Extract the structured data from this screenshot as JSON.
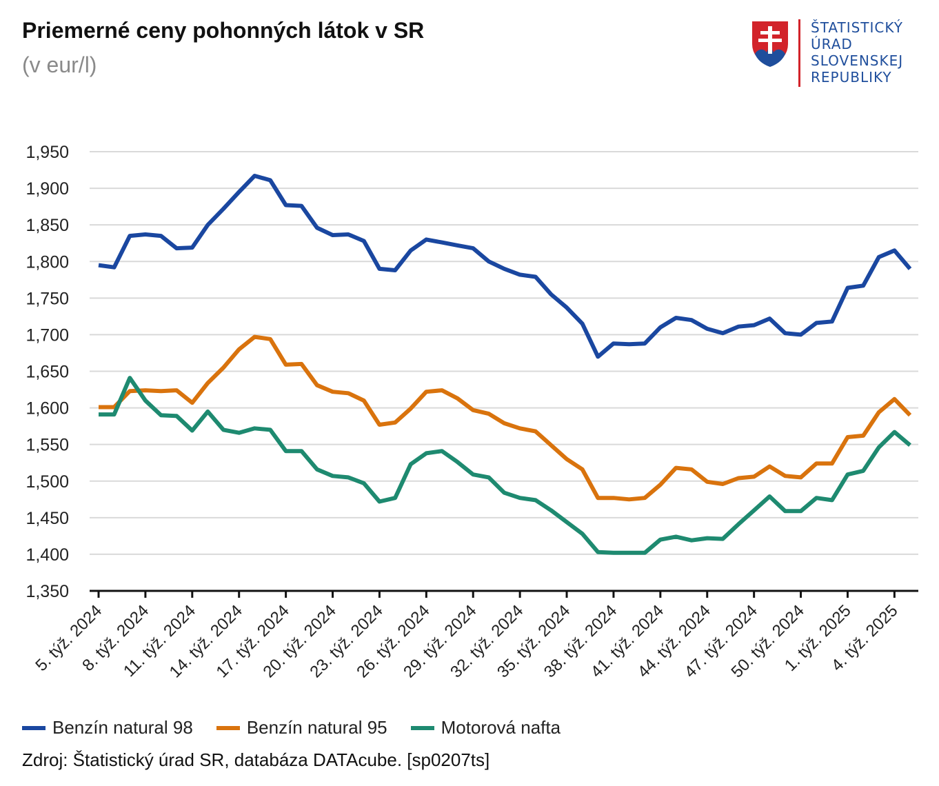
{
  "header": {
    "title": "Priemerné ceny pohonných látok v SR",
    "subtitle": "(v eur/l)"
  },
  "logo": {
    "lines": [
      "ŠTATISTICKÝ",
      "ÚRAD",
      "SLOVENSKEJ",
      "REPUBLIKY"
    ],
    "colors": {
      "text": "#1f4e9c",
      "shield": "#d2232a",
      "hills": "#1f4e9c",
      "rule": "#d2232a"
    }
  },
  "chart_data": {
    "type": "line",
    "title": "Priemerné ceny pohonných látok v SR",
    "subtitle": "(v eur/l)",
    "xlabel": "",
    "ylabel": "",
    "ylim": [
      1.35,
      1.95
    ],
    "yticks": [
      "1,350",
      "1,400",
      "1,450",
      "1,500",
      "1,550",
      "1,600",
      "1,650",
      "1,700",
      "1,750",
      "1,800",
      "1,850",
      "1,900",
      "1,950"
    ],
    "ytick_values": [
      1.35,
      1.4,
      1.45,
      1.5,
      1.55,
      1.6,
      1.65,
      1.7,
      1.75,
      1.8,
      1.85,
      1.9,
      1.95
    ],
    "grid": true,
    "legend_position": "bottom-left",
    "x_tick_labels": [
      "5. týž. 2024",
      "8. týž. 2024",
      "11. týž. 2024",
      "14. týž. 2024",
      "17. týž. 2024",
      "20. týž. 2024",
      "23. týž. 2024",
      "26. týž. 2024",
      "29. týž. 2024",
      "32. týž. 2024",
      "35. týž. 2024",
      "38. týž. 2024",
      "41. týž. 2024",
      "44. týž. 2024",
      "47. týž. 2024",
      "50. týž. 2024",
      "1. týž. 2025",
      "4. týž. 2025"
    ],
    "x_tick_indices": [
      0,
      3,
      6,
      9,
      12,
      15,
      18,
      21,
      24,
      27,
      30,
      33,
      36,
      39,
      42,
      45,
      48,
      51
    ],
    "point_count": 53,
    "series": [
      {
        "name": "Benzín natural 98",
        "color": "#1a47a0",
        "values": [
          1.795,
          1.792,
          1.835,
          1.837,
          1.835,
          1.818,
          1.819,
          1.85,
          1.872,
          1.895,
          1.917,
          1.911,
          1.877,
          1.876,
          1.846,
          1.836,
          1.837,
          1.828,
          1.79,
          1.788,
          1.815,
          1.83,
          1.826,
          1.822,
          1.818,
          1.8,
          1.79,
          1.782,
          1.779,
          1.755,
          1.737,
          1.715,
          1.67,
          1.688,
          1.687,
          1.688,
          1.71,
          1.723,
          1.72,
          1.708,
          1.702,
          1.711,
          1.713,
          1.722,
          1.702,
          1.7,
          1.716,
          1.718,
          1.764,
          1.767,
          1.806,
          1.815,
          1.79
        ]
      },
      {
        "name": "Benzín natural 95",
        "color": "#d9730d",
        "values": [
          1.601,
          1.601,
          1.623,
          1.624,
          1.623,
          1.624,
          1.607,
          1.634,
          1.655,
          1.68,
          1.697,
          1.694,
          1.659,
          1.66,
          1.631,
          1.622,
          1.62,
          1.61,
          1.577,
          1.58,
          1.599,
          1.622,
          1.624,
          1.613,
          1.597,
          1.592,
          1.579,
          1.572,
          1.568,
          1.549,
          1.53,
          1.516,
          1.477,
          1.477,
          1.475,
          1.477,
          1.495,
          1.518,
          1.516,
          1.499,
          1.496,
          1.504,
          1.506,
          1.52,
          1.507,
          1.505,
          1.524,
          1.524,
          1.56,
          1.562,
          1.594,
          1.612,
          1.59
        ]
      },
      {
        "name": "Motorová nafta",
        "color": "#1e8a70",
        "values": [
          1.591,
          1.591,
          1.641,
          1.61,
          1.59,
          1.589,
          1.569,
          1.595,
          1.57,
          1.566,
          1.572,
          1.57,
          1.541,
          1.541,
          1.516,
          1.507,
          1.505,
          1.497,
          1.472,
          1.477,
          1.523,
          1.538,
          1.541,
          1.526,
          1.509,
          1.505,
          1.484,
          1.477,
          1.474,
          1.46,
          1.444,
          1.428,
          1.403,
          1.402,
          1.402,
          1.402,
          1.42,
          1.424,
          1.419,
          1.422,
          1.421,
          1.441,
          1.46,
          1.479,
          1.459,
          1.459,
          1.477,
          1.474,
          1.509,
          1.514,
          1.546,
          1.567,
          1.549
        ]
      }
    ]
  },
  "source": "Zdroj: Štatistický úrad SR, databáza DATAcube. [sp0207ts]"
}
